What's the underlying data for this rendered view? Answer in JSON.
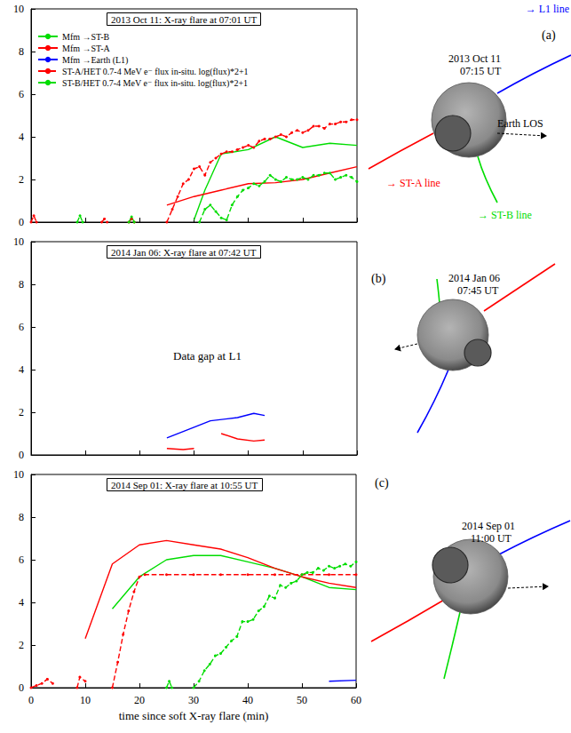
{
  "chart_data": [
    {
      "type": "line",
      "panel": "(a)",
      "title": "2013 Oct 11: X-ray flare at 07:01 UT",
      "xlim": [
        0,
        60
      ],
      "xticks": [
        0,
        10,
        20,
        30,
        40,
        50,
        60
      ],
      "ylim": [
        0,
        10
      ],
      "yticks": [
        0,
        2,
        4,
        6,
        8,
        10
      ],
      "grid": false,
      "tick_labels": "y",
      "legend": "top-left",
      "series": [
        {
          "name": "Mfm →ST-B",
          "color": "#00dd00",
          "line_style": "solid",
          "x": [
            30,
            32,
            35,
            40,
            45,
            50,
            55,
            60
          ],
          "values": [
            0.1,
            1.5,
            3.2,
            3.4,
            4.0,
            3.5,
            3.7,
            3.6
          ]
        },
        {
          "name": "Mfm →ST-A",
          "color": "#ff0000",
          "line_style": "solid",
          "x": [
            25,
            30,
            35,
            40,
            45,
            50,
            55,
            60
          ],
          "values": [
            0.8,
            1.2,
            1.5,
            1.8,
            1.85,
            2.0,
            2.3,
            2.6
          ]
        },
        {
          "name": "Mfm →Earth (L1)",
          "color": "#0000ff",
          "line_style": "solid",
          "x": [],
          "values": []
        },
        {
          "name": "ST-A/HET 0.7-4 MeV e⁻ flux in-situ. log(flux)*2+1",
          "color": "#ff0000",
          "line_style": "dashed",
          "marker": "circle",
          "x": [
            0,
            0.5,
            1,
            2,
            13,
            13.5,
            14,
            15,
            18,
            18.5,
            19,
            20,
            25,
            26,
            27,
            28,
            29,
            30,
            31,
            32,
            33,
            34,
            35,
            36,
            37,
            38,
            39,
            40,
            41,
            42,
            43,
            44,
            45,
            46,
            47,
            48,
            49,
            50,
            51,
            52,
            53,
            54,
            55,
            56,
            57,
            58,
            59,
            60
          ],
          "values": [
            0,
            0.3,
            0,
            null,
            0,
            0.15,
            0,
            null,
            0,
            0.15,
            0,
            null,
            0,
            0.6,
            1.2,
            1.8,
            2.0,
            2.5,
            2.6,
            2.2,
            2.8,
            3.0,
            3.2,
            3.3,
            3.3,
            3.4,
            3.5,
            3.6,
            3.5,
            3.8,
            3.9,
            3.9,
            4.0,
            4.1,
            4.0,
            4.2,
            4.3,
            4.2,
            4.3,
            4.5,
            4.5,
            4.4,
            4.6,
            4.6,
            4.7,
            4.7,
            4.8,
            4.8
          ]
        },
        {
          "name": "ST-B/HET 0.7-4 MeV e⁻ flux in-situ. log(flux)*2+1",
          "color": "#00dd00",
          "line_style": "dashed",
          "marker": "circle",
          "x": [
            8.5,
            9,
            9.5,
            10,
            18,
            18.5,
            19,
            20,
            31,
            32,
            33,
            34,
            35,
            36,
            37,
            38,
            39,
            40,
            41,
            42,
            43,
            44,
            45,
            46,
            47,
            48,
            49,
            50,
            51,
            52,
            53,
            54,
            55,
            56,
            57,
            58,
            59,
            60
          ],
          "values": [
            0,
            0.3,
            0,
            null,
            0,
            0.25,
            0,
            null,
            0,
            0.6,
            0.8,
            0.5,
            0.2,
            0.1,
            0.8,
            1.2,
            1.5,
            1.6,
            1.8,
            1.7,
            1.9,
            2.2,
            2.0,
            1.9,
            2.1,
            2.0,
            2.0,
            2.1,
            2.0,
            2.2,
            2.2,
            2.3,
            2.3,
            2.0,
            2.1,
            2.2,
            2.1,
            1.9
          ]
        }
      ],
      "inset": {
        "date": "2013 Oct 11",
        "time": "07:15 UT",
        "labels": {
          "l1": "→ L1 line",
          "sta": "→ ST-A line",
          "stb": "→ ST-B line",
          "los": "Earth LOS"
        }
      }
    },
    {
      "type": "line",
      "panel": "(b)",
      "title": "2014 Jan 06: X-ray flare at 07:42 UT",
      "xlim": [
        0,
        60
      ],
      "xticks": [
        0,
        10,
        20,
        30,
        40,
        50,
        60
      ],
      "ylim": [
        0,
        10
      ],
      "yticks": [
        0,
        2,
        4,
        6,
        8,
        10
      ],
      "grid": false,
      "tick_labels": "y",
      "annotations": [
        {
          "text": "Data gap at L1"
        }
      ],
      "series": [
        {
          "color": "#0000ff",
          "line_style": "solid",
          "x": [
            25,
            30,
            33,
            38,
            41,
            43
          ],
          "values": [
            0.8,
            1.3,
            1.6,
            1.75,
            1.95,
            1.85
          ]
        },
        {
          "color": "#ff0000",
          "line_style": "solid",
          "x": [
            25,
            28,
            30,
            32,
            35,
            38,
            41,
            43
          ],
          "values": [
            0.3,
            0.25,
            0.3,
            null,
            1.0,
            0.75,
            0.65,
            0.7
          ]
        }
      ],
      "inset": {
        "date": "2014 Jan 06",
        "time": "07:45 UT"
      }
    },
    {
      "type": "line",
      "panel": "(c)",
      "title": "2014 Sep 01: X-ray flare at 10:55 UT",
      "x_label": "time since soft X-ray flare (min)",
      "xlim": [
        0,
        60
      ],
      "xticks": [
        0,
        10,
        20,
        30,
        40,
        50,
        60
      ],
      "ylim": [
        0,
        10
      ],
      "yticks": [
        0,
        2,
        4,
        6,
        8,
        10
      ],
      "grid": false,
      "series": [
        {
          "color": "#00dd00",
          "line_style": "solid",
          "x": [
            15,
            20,
            25,
            30,
            35,
            40,
            45,
            50,
            55,
            60
          ],
          "values": [
            3.7,
            5.2,
            6.0,
            6.2,
            6.2,
            5.9,
            5.6,
            5.2,
            4.7,
            4.6
          ]
        },
        {
          "color": "#ff0000",
          "line_style": "solid",
          "x": [
            10,
            15,
            20,
            25,
            30,
            35,
            40,
            45,
            50,
            55,
            60
          ],
          "values": [
            2.3,
            5.8,
            6.7,
            6.9,
            6.7,
            6.5,
            6.1,
            5.6,
            5.2,
            4.9,
            4.7
          ]
        },
        {
          "color": "#0000ff",
          "line_style": "solid",
          "x": [
            55,
            60
          ],
          "values": [
            0.3,
            0.35
          ]
        },
        {
          "color": "#ff0000",
          "line_style": "dashed",
          "marker": "circle",
          "x": [
            0,
            1,
            2,
            3,
            4,
            5,
            8.5,
            9,
            10,
            11,
            15,
            16,
            17,
            18,
            19,
            20,
            21,
            25,
            30,
            35,
            40,
            45,
            50,
            55,
            60
          ],
          "values": [
            0,
            0.1,
            0.2,
            0.4,
            0.2,
            null,
            0,
            0.5,
            0.3,
            null,
            0,
            1.2,
            2.5,
            3.6,
            4.5,
            5.2,
            5.3,
            5.3,
            5.3,
            5.3,
            5.3,
            5.3,
            5.3,
            5.3,
            5.3
          ]
        },
        {
          "color": "#00dd00",
          "line_style": "dashed",
          "marker": "circle",
          "x": [
            25,
            25.5,
            26,
            27,
            30,
            31,
            32,
            33,
            34,
            35,
            36,
            37,
            38,
            39,
            40,
            41,
            42,
            43,
            44,
            45,
            46,
            47,
            48,
            49,
            50,
            51,
            52,
            53,
            54,
            55,
            56,
            57,
            58,
            59,
            60
          ],
          "values": [
            0,
            0.3,
            0,
            null,
            0,
            0.3,
            0.8,
            1.1,
            1.5,
            1.6,
            1.9,
            2.2,
            2.4,
            3.1,
            3.1,
            3.2,
            3.6,
            3.8,
            4.3,
            4.2,
            4.8,
            4.7,
            4.9,
            5.0,
            5.3,
            5.4,
            5.4,
            5.6,
            5.5,
            5.7,
            5.6,
            5.7,
            5.8,
            5.7,
            5.9
          ]
        }
      ],
      "inset": {
        "date": "2014 Sep 01",
        "time": "11:00 UT"
      }
    }
  ]
}
